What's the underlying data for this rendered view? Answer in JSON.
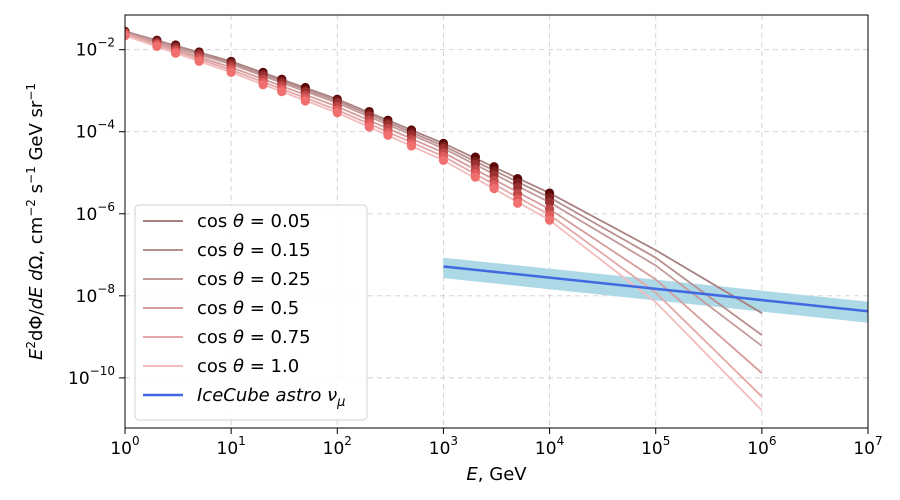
{
  "chart_data": {
    "type": "line",
    "xlabel": "E,  GeV",
    "ylabel": "E²dΦ/dE dΩ,  cm⁻² s⁻¹ GeV sr⁻¹",
    "x_scale": "log",
    "y_scale": "log",
    "xlim": [
      1,
      10000000
    ],
    "ylim": [
      6e-12,
      0.07
    ],
    "grid": true,
    "legend_position": "lower-left",
    "x_ticks": [
      {
        "base": "10",
        "exp": "0"
      },
      {
        "base": "10",
        "exp": "1"
      },
      {
        "base": "10",
        "exp": "2"
      },
      {
        "base": "10",
        "exp": "3"
      },
      {
        "base": "10",
        "exp": "4"
      },
      {
        "base": "10",
        "exp": "5"
      },
      {
        "base": "10",
        "exp": "6"
      },
      {
        "base": "10",
        "exp": "7"
      }
    ],
    "y_ticks": [
      {
        "base": "10",
        "exp": "−10",
        "value": 1e-10
      },
      {
        "base": "10",
        "exp": "−8",
        "value": 1e-08
      },
      {
        "base": "10",
        "exp": "−6",
        "value": 1e-06
      },
      {
        "base": "10",
        "exp": "−4",
        "value": 0.0001
      },
      {
        "base": "10",
        "exp": "−2",
        "value": 0.01
      }
    ],
    "series": [
      {
        "name": "cos θ = 0.05",
        "color": "#a98181",
        "marker_color": "#5a0606",
        "line_x": [
          1,
          10,
          100,
          1000,
          10000,
          100000,
          1000000
        ],
        "line_y": [
          0.028,
          0.0052,
          0.00062,
          5.2e-05,
          3.2e-06,
          1.3e-07,
          3.8e-09
        ],
        "points_x": [
          1,
          2,
          3,
          5,
          10,
          20,
          30,
          50,
          100,
          200,
          300,
          500,
          1000,
          2000,
          3000,
          5000,
          10000
        ],
        "points_y": [
          0.028,
          0.017,
          0.013,
          0.0088,
          0.0052,
          0.0028,
          0.0019,
          0.0012,
          0.00062,
          0.00031,
          0.00019,
          0.00011,
          5.2e-05,
          2.4e-05,
          1.4e-05,
          7.2e-06,
          3.2e-06
        ]
      },
      {
        "name": "cos θ = 0.15",
        "color": "#b88f8f",
        "marker_color": "#7a1c1c",
        "line_x": [
          1,
          10,
          100,
          1000,
          10000,
          100000,
          1000000
        ],
        "line_y": [
          0.027,
          0.0048,
          0.00056,
          4.5e-05,
          2.5e-06,
          8.5e-08,
          1.1e-09
        ],
        "points_x": [
          1,
          2,
          3,
          5,
          10,
          20,
          30,
          50,
          100,
          200,
          300,
          500,
          1000,
          2000,
          3000,
          5000,
          10000
        ],
        "points_y": [
          0.027,
          0.016,
          0.012,
          0.0082,
          0.0048,
          0.0025,
          0.0017,
          0.001,
          0.00056,
          0.00027,
          0.00017,
          9.5e-05,
          4.5e-05,
          1.9e-05,
          1.1e-05,
          5.7e-06,
          2.5e-06
        ]
      },
      {
        "name": "cos θ = 0.25",
        "color": "#c49a9a",
        "marker_color": "#9a3030",
        "line_x": [
          1,
          10,
          100,
          1000,
          10000,
          100000,
          1000000
        ],
        "line_y": [
          0.026,
          0.0044,
          0.0005,
          3.9e-05,
          1.9e-06,
          5.5e-08,
          6e-10
        ],
        "points_x": [
          1,
          2,
          3,
          5,
          10,
          20,
          30,
          50,
          100,
          200,
          300,
          500,
          1000,
          2000,
          3000,
          5000,
          10000
        ],
        "points_y": [
          0.026,
          0.015,
          0.011,
          0.0076,
          0.0044,
          0.0023,
          0.0015,
          0.00093,
          0.0005,
          0.00024,
          0.00015,
          8.2e-05,
          3.9e-05,
          1.6e-05,
          8.8e-06,
          4.4e-06,
          1.9e-06
        ]
      },
      {
        "name": "cos θ = 0.5",
        "color": "#d69c9c",
        "marker_color": "#c04848",
        "line_x": [
          1,
          10,
          100,
          1000,
          10000,
          100000,
          1000000
        ],
        "line_y": [
          0.025,
          0.0037,
          0.00041,
          3.1e-05,
          1.3e-06,
          2.5e-08,
          1.3e-10
        ],
        "points_x": [
          1,
          2,
          3,
          5,
          10,
          20,
          30,
          50,
          100,
          200,
          300,
          500,
          1000,
          2000,
          3000,
          5000,
          10000
        ],
        "points_y": [
          0.025,
          0.014,
          0.0098,
          0.0066,
          0.0037,
          0.0019,
          0.0013,
          0.00077,
          0.00041,
          0.00019,
          0.00012,
          6.5e-05,
          3.1e-05,
          1.2e-05,
          6.5e-06,
          3.1e-06,
          1.3e-06
        ]
      },
      {
        "name": "cos θ = 0.75",
        "color": "#e4a8a8",
        "marker_color": "#e05c5c",
        "line_x": [
          1,
          10,
          100,
          1000,
          10000,
          100000,
          1000000
        ],
        "line_y": [
          0.024,
          0.0032,
          0.00034,
          2.5e-05,
          9.4e-07,
          1.2e-08,
          3.5e-11
        ],
        "points_x": [
          1,
          2,
          3,
          5,
          10,
          20,
          30,
          50,
          100,
          200,
          300,
          500,
          1000,
          2000,
          3000,
          5000,
          10000
        ],
        "points_y": [
          0.024,
          0.013,
          0.0088,
          0.0058,
          0.0032,
          0.0016,
          0.0011,
          0.00065,
          0.00034,
          0.00016,
          9.7e-05,
          5.3e-05,
          2.5e-05,
          9.5e-06,
          5.1e-06,
          2.3e-06,
          9.4e-07
        ]
      },
      {
        "name": "cos θ = 1.0",
        "color": "#f3bcbc",
        "marker_color": "#f07070",
        "line_x": [
          1,
          10,
          100,
          1000,
          10000,
          100000,
          1000000
        ],
        "line_y": [
          0.022,
          0.0028,
          0.00029,
          2e-05,
          7e-07,
          7e-09,
          1.6e-11
        ],
        "points_x": [
          1,
          2,
          3,
          5,
          10,
          20,
          30,
          50,
          100,
          200,
          300,
          500,
          1000,
          2000,
          3000,
          5000,
          10000
        ],
        "points_y": [
          0.022,
          0.012,
          0.0082,
          0.0052,
          0.0028,
          0.0014,
          0.00095,
          0.00056,
          0.00029,
          0.00013,
          8.2e-05,
          4.5e-05,
          2e-05,
          7.8e-06,
          4.1e-06,
          1.8e-06,
          7e-07
        ]
      },
      {
        "name": "IceCube astro ν_μ",
        "color": "#4169e1",
        "line_x": [
          1000,
          10000000
        ],
        "line_y": [
          5.2e-08,
          4.2e-09
        ],
        "band_color": "#add8e6",
        "band_upper": [
          8.5e-08,
          7.2e-09
        ],
        "band_lower": [
          2.7e-08,
          2.2e-09
        ]
      }
    ]
  }
}
